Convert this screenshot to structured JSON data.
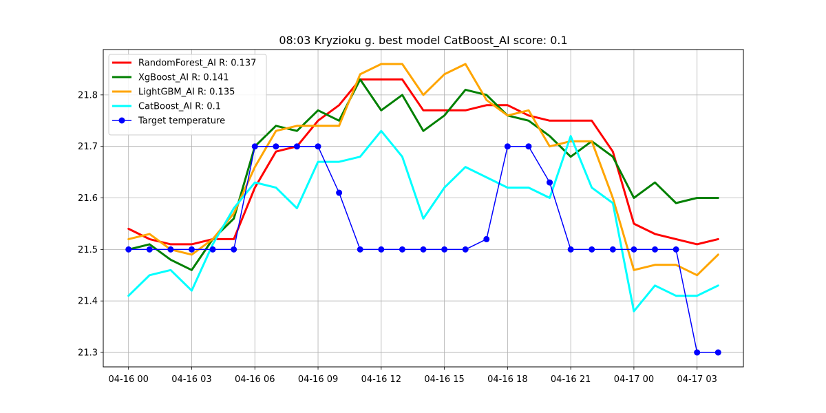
{
  "chart_data": {
    "type": "line",
    "title": "08:03 Kryzioku g. best model CatBoost_AI score: 0.1",
    "xlabel": "",
    "ylabel": "",
    "x": [
      "04-16 00",
      "04-16 01",
      "04-16 02",
      "04-16 03",
      "04-16 04",
      "04-16 05",
      "04-16 06",
      "04-16 07",
      "04-16 08",
      "04-16 09",
      "04-16 10",
      "04-16 11",
      "04-16 12",
      "04-16 13",
      "04-16 14",
      "04-16 15",
      "04-16 16",
      "04-16 17",
      "04-16 18",
      "04-16 19",
      "04-16 20",
      "04-16 21",
      "04-16 22",
      "04-16 23",
      "04-17 00",
      "04-17 01",
      "04-17 02",
      "04-17 03",
      "04-17 04"
    ],
    "xticks": [
      "04-16 00",
      "04-16 03",
      "04-16 06",
      "04-16 09",
      "04-16 12",
      "04-16 15",
      "04-16 18",
      "04-16 21",
      "04-17 00",
      "04-17 03"
    ],
    "xlim": [
      "04-15 22:48",
      "04-17 05:12"
    ],
    "yticks": [
      21.3,
      21.4,
      21.5,
      21.6,
      21.7,
      21.8
    ],
    "ylim": [
      21.272,
      21.888
    ],
    "grid": true,
    "legend_position": "top-left",
    "series": [
      {
        "name": "RandomForest_AI R: 0.137",
        "color": "#ff0000",
        "marker": false,
        "values": [
          21.54,
          21.52,
          21.51,
          21.51,
          21.52,
          21.52,
          21.62,
          21.69,
          21.7,
          21.75,
          21.78,
          21.83,
          21.83,
          21.83,
          21.77,
          21.77,
          21.77,
          21.78,
          21.78,
          21.76,
          21.75,
          21.75,
          21.75,
          21.69,
          21.55,
          21.53,
          21.52,
          21.51,
          21.52
        ]
      },
      {
        "name": "XgBoost_AI R: 0.141",
        "color": "#008000",
        "marker": false,
        "values": [
          21.5,
          21.51,
          21.48,
          21.46,
          21.52,
          21.56,
          21.7,
          21.74,
          21.73,
          21.77,
          21.75,
          21.83,
          21.77,
          21.8,
          21.73,
          21.76,
          21.81,
          21.8,
          21.76,
          21.75,
          21.72,
          21.68,
          21.71,
          21.68,
          21.6,
          21.63,
          21.59,
          21.6,
          21.6
        ]
      },
      {
        "name": "LightGBM_AI R: 0.135",
        "color": "#ffa500",
        "marker": false,
        "values": [
          21.52,
          21.53,
          21.5,
          21.49,
          21.52,
          21.57,
          21.66,
          21.73,
          21.74,
          21.74,
          21.74,
          21.84,
          21.86,
          21.86,
          21.8,
          21.84,
          21.86,
          21.79,
          21.76,
          21.77,
          21.7,
          21.71,
          21.71,
          21.6,
          21.46,
          21.47,
          21.47,
          21.45,
          21.49
        ]
      },
      {
        "name": "CatBoost_AI R: 0.1",
        "color": "#00ffff",
        "marker": false,
        "values": [
          21.41,
          21.45,
          21.46,
          21.42,
          21.51,
          21.58,
          21.63,
          21.62,
          21.58,
          21.67,
          21.67,
          21.68,
          21.73,
          21.68,
          21.56,
          21.62,
          21.66,
          21.64,
          21.62,
          21.62,
          21.6,
          21.72,
          21.62,
          21.59,
          21.38,
          21.43,
          21.41,
          21.41,
          21.43
        ]
      },
      {
        "name": "Target temperature",
        "color": "#0000ff",
        "marker": true,
        "values": [
          21.5,
          21.5,
          21.5,
          21.5,
          21.5,
          21.5,
          21.7,
          21.7,
          21.7,
          21.7,
          21.61,
          21.5,
          21.5,
          21.5,
          21.5,
          21.5,
          21.5,
          21.52,
          21.7,
          21.7,
          21.63,
          21.5,
          21.5,
          21.5,
          21.5,
          21.5,
          21.5,
          21.3,
          21.3
        ]
      }
    ]
  }
}
